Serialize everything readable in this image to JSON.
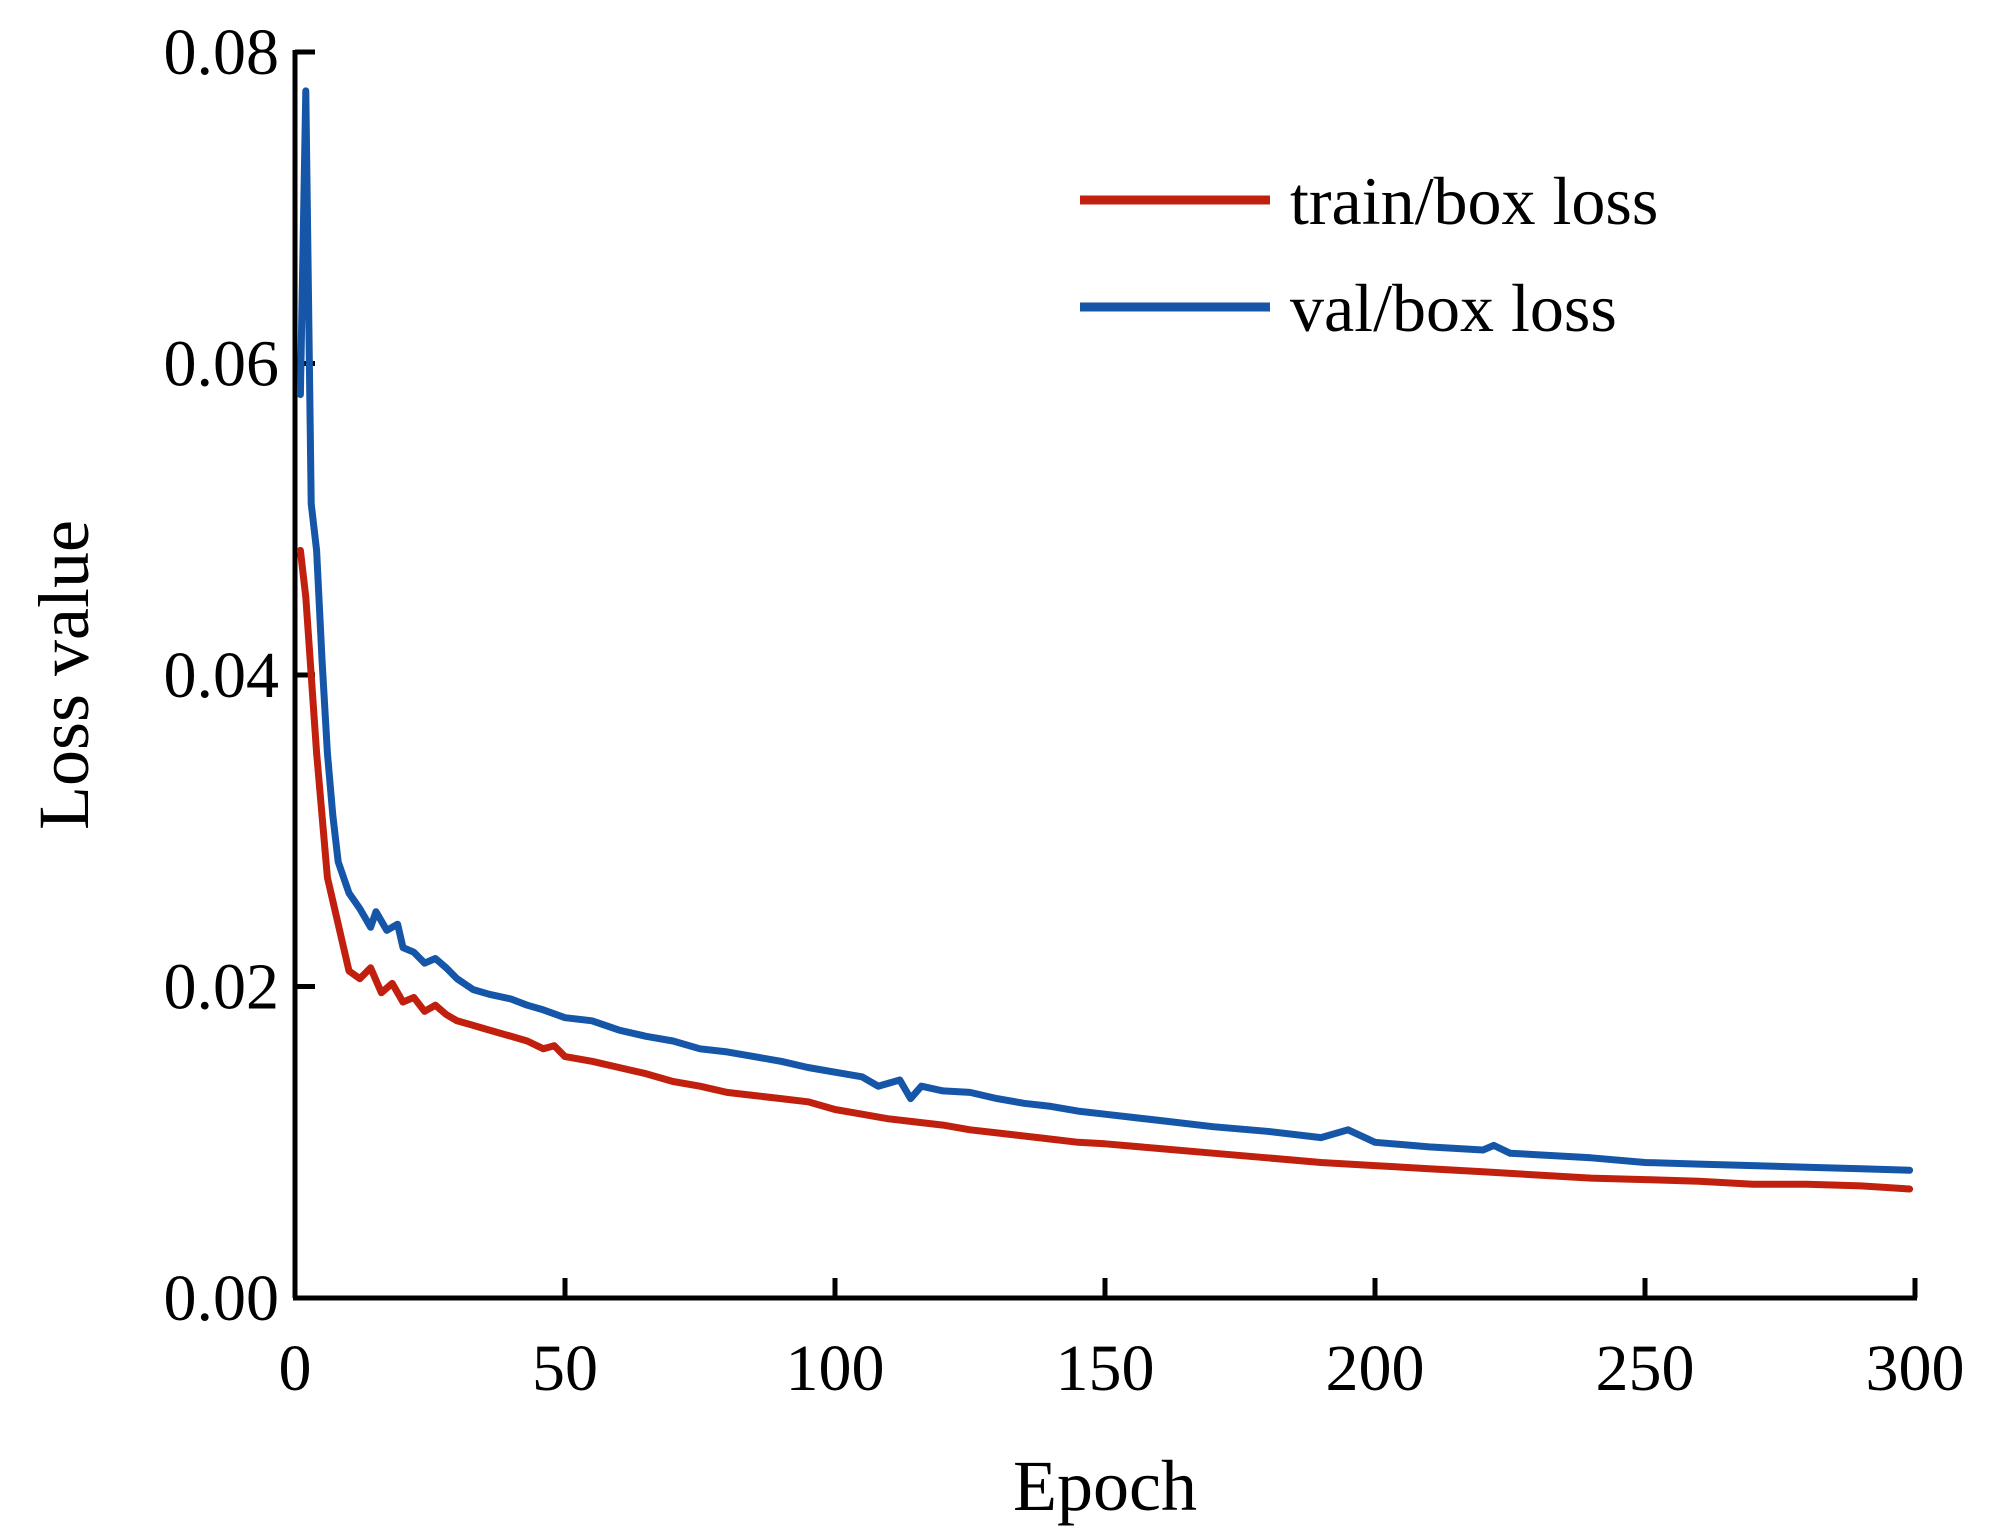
{
  "chart_data": {
    "type": "line",
    "title": "",
    "xlabel": "Epoch",
    "ylabel": "Loss value",
    "xlim": [
      0,
      300
    ],
    "ylim": [
      0,
      0.08
    ],
    "x_ticks": [
      0,
      50,
      100,
      150,
      200,
      250,
      300
    ],
    "x_tick_labels": [
      "0",
      "50",
      "100",
      "150",
      "200",
      "250",
      "300"
    ],
    "y_ticks": [
      0,
      0.02,
      0.04,
      0.06,
      0.08
    ],
    "y_tick_labels": [
      "0.00",
      "0.02",
      "0.04",
      "0.06",
      "0.08"
    ],
    "grid": false,
    "legend": {
      "position": "top-right"
    },
    "series": [
      {
        "name": "train/box loss",
        "color": "#c0200d",
        "points": [
          [
            1,
            0.048
          ],
          [
            2,
            0.045
          ],
          [
            3,
            0.04
          ],
          [
            4,
            0.035
          ],
          [
            5,
            0.031
          ],
          [
            6,
            0.027
          ],
          [
            7,
            0.0255
          ],
          [
            8,
            0.024
          ],
          [
            9,
            0.0225
          ],
          [
            10,
            0.021
          ],
          [
            12,
            0.0205
          ],
          [
            14,
            0.0212
          ],
          [
            16,
            0.0196
          ],
          [
            18,
            0.0202
          ],
          [
            20,
            0.019
          ],
          [
            22,
            0.0193
          ],
          [
            24,
            0.0184
          ],
          [
            26,
            0.0188
          ],
          [
            28,
            0.0182
          ],
          [
            30,
            0.0178
          ],
          [
            33,
            0.0175
          ],
          [
            36,
            0.0172
          ],
          [
            40,
            0.0168
          ],
          [
            43,
            0.0165
          ],
          [
            46,
            0.016
          ],
          [
            48,
            0.0162
          ],
          [
            50,
            0.0155
          ],
          [
            55,
            0.0152
          ],
          [
            60,
            0.0148
          ],
          [
            65,
            0.0144
          ],
          [
            70,
            0.0139
          ],
          [
            75,
            0.0136
          ],
          [
            80,
            0.0132
          ],
          [
            85,
            0.013
          ],
          [
            90,
            0.0128
          ],
          [
            95,
            0.0126
          ],
          [
            100,
            0.0121
          ],
          [
            105,
            0.0118
          ],
          [
            110,
            0.0115
          ],
          [
            115,
            0.0113
          ],
          [
            120,
            0.0111
          ],
          [
            125,
            0.0108
          ],
          [
            130,
            0.0106
          ],
          [
            135,
            0.0104
          ],
          [
            140,
            0.0102
          ],
          [
            145,
            0.01
          ],
          [
            150,
            0.0099
          ],
          [
            160,
            0.0096
          ],
          [
            170,
            0.0093
          ],
          [
            180,
            0.009
          ],
          [
            190,
            0.0087
          ],
          [
            200,
            0.0085
          ],
          [
            210,
            0.0083
          ],
          [
            220,
            0.0081
          ],
          [
            230,
            0.0079
          ],
          [
            240,
            0.0077
          ],
          [
            250,
            0.0076
          ],
          [
            260,
            0.0075
          ],
          [
            270,
            0.0073
          ],
          [
            280,
            0.0073
          ],
          [
            290,
            0.0072
          ],
          [
            299,
            0.007
          ]
        ]
      },
      {
        "name": "val/box loss",
        "color": "#1556a8",
        "points": [
          [
            1,
            0.058
          ],
          [
            2,
            0.0775
          ],
          [
            3,
            0.051
          ],
          [
            4,
            0.048
          ],
          [
            5,
            0.041
          ],
          [
            6,
            0.035
          ],
          [
            7,
            0.031
          ],
          [
            8,
            0.028
          ],
          [
            10,
            0.026
          ],
          [
            12,
            0.025
          ],
          [
            14,
            0.0238
          ],
          [
            15,
            0.0248
          ],
          [
            17,
            0.0236
          ],
          [
            19,
            0.024
          ],
          [
            20,
            0.0225
          ],
          [
            22,
            0.0222
          ],
          [
            24,
            0.0215
          ],
          [
            26,
            0.0218
          ],
          [
            28,
            0.0212
          ],
          [
            30,
            0.0205
          ],
          [
            33,
            0.0198
          ],
          [
            36,
            0.0195
          ],
          [
            40,
            0.0192
          ],
          [
            43,
            0.0188
          ],
          [
            46,
            0.0185
          ],
          [
            50,
            0.018
          ],
          [
            55,
            0.0178
          ],
          [
            60,
            0.0172
          ],
          [
            65,
            0.0168
          ],
          [
            70,
            0.0165
          ],
          [
            75,
            0.016
          ],
          [
            80,
            0.0158
          ],
          [
            85,
            0.0155
          ],
          [
            90,
            0.0152
          ],
          [
            95,
            0.0148
          ],
          [
            100,
            0.0145
          ],
          [
            105,
            0.0142
          ],
          [
            108,
            0.0136
          ],
          [
            112,
            0.014
          ],
          [
            114,
            0.0128
          ],
          [
            116,
            0.0136
          ],
          [
            120,
            0.0133
          ],
          [
            125,
            0.0132
          ],
          [
            130,
            0.0128
          ],
          [
            135,
            0.0125
          ],
          [
            140,
            0.0123
          ],
          [
            145,
            0.012
          ],
          [
            150,
            0.0118
          ],
          [
            160,
            0.0114
          ],
          [
            170,
            0.011
          ],
          [
            180,
            0.0107
          ],
          [
            190,
            0.0103
          ],
          [
            195,
            0.0108
          ],
          [
            200,
            0.01
          ],
          [
            210,
            0.0097
          ],
          [
            220,
            0.0095
          ],
          [
            222,
            0.0098
          ],
          [
            225,
            0.0093
          ],
          [
            230,
            0.0092
          ],
          [
            240,
            0.009
          ],
          [
            250,
            0.0087
          ],
          [
            260,
            0.0086
          ],
          [
            270,
            0.0085
          ],
          [
            280,
            0.0084
          ],
          [
            290,
            0.0083
          ],
          [
            299,
            0.0082
          ]
        ]
      }
    ]
  }
}
